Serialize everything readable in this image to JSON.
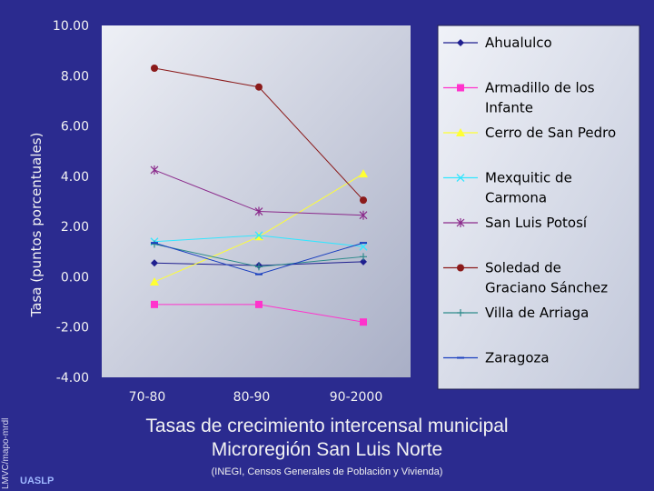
{
  "chart_data": {
    "type": "line",
    "categories": [
      "70-80",
      "80-90",
      "90-2000"
    ],
    "ylabel": "Tasa (puntos porcentuales)",
    "ylim": [
      -4,
      10
    ],
    "yticks": [
      "10.00",
      "8.00",
      "6.00",
      "4.00",
      "2.00",
      "0.00",
      "-2.00",
      "-4.00"
    ],
    "grid": false,
    "legend_position": "right",
    "series": [
      {
        "name": "Ahualulco",
        "values": [
          0.55,
          0.45,
          0.6
        ],
        "color": "#1F1F8F",
        "marker": "diamond"
      },
      {
        "name": "Armadillo de los Infante",
        "values": [
          -1.1,
          -1.1,
          -1.8
        ],
        "color": "#FF33CC",
        "marker": "square"
      },
      {
        "name": "Cerro de San Pedro",
        "values": [
          -0.2,
          1.6,
          4.1
        ],
        "color": "#FFFF33",
        "marker": "triangle"
      },
      {
        "name": "Mexquitic de Carmona",
        "values": [
          1.4,
          1.65,
          1.2
        ],
        "color": "#33E6FF",
        "marker": "x"
      },
      {
        "name": "San Luis Potosí",
        "values": [
          4.25,
          2.6,
          2.45
        ],
        "color": "#8B2A8B",
        "marker": "star"
      },
      {
        "name": "Soledad de Graciano Sánchez",
        "values": [
          8.3,
          7.55,
          3.05
        ],
        "color": "#8B1A1A",
        "marker": "circle"
      },
      {
        "name": "Villa de Arriaga",
        "values": [
          1.3,
          0.4,
          0.8
        ],
        "color": "#2E8B8B",
        "marker": "plus"
      },
      {
        "name": "Zaragoza",
        "values": [
          1.35,
          0.1,
          1.35
        ],
        "color": "#1A3FBF",
        "marker": "dash"
      }
    ]
  },
  "footer": {
    "title_line1": "Tasas de crecimiento intercensal municipal",
    "title_line2": "Microregión San Luis Norte",
    "source": "(INEGI, Censos Generales de Población y Vivienda)",
    "side_credit": "LMVC/mapo-mrdl",
    "logo": "UASLP"
  },
  "colors": {
    "slide_background": "#2B2B8F",
    "plot_gradient_light": "#E8EAF2",
    "plot_gradient_dark": "#AAB0C8",
    "axis_text": "#F2F2F2",
    "legend_text": "#000000"
  }
}
